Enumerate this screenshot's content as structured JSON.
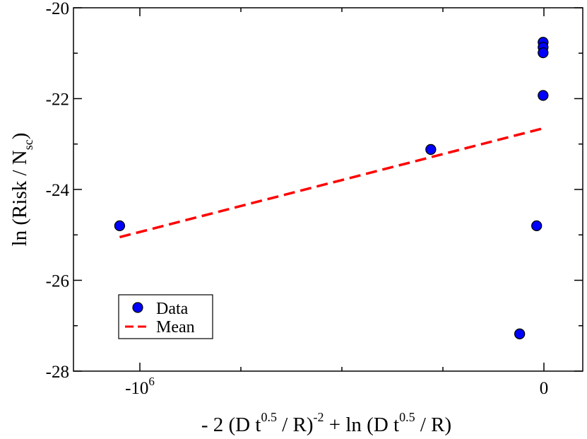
{
  "chart_data": {
    "type": "scatter",
    "title": "",
    "xlabel": {
      "parts": [
        "- 2 (D t",
        "0.5",
        " / R)",
        "-2",
        " + ln (D t",
        "0.5",
        " / R)"
      ]
    },
    "ylabel": {
      "parts": [
        "ln (Risk / N",
        "sc",
        ")"
      ]
    },
    "xlim": [
      -1150000.0,
      100000.0
    ],
    "ylim": [
      -28,
      -20
    ],
    "grid": false,
    "x_ticks": [
      {
        "value": -1000000,
        "base": "-10",
        "exp": "6"
      },
      {
        "value": 0,
        "base": "0",
        "exp": ""
      }
    ],
    "y_ticks": [
      {
        "value": -28,
        "label": "-28"
      },
      {
        "value": -26,
        "label": "-26"
      },
      {
        "value": -24,
        "label": "-24"
      },
      {
        "value": -22,
        "label": "-22"
      },
      {
        "value": -20,
        "label": "-20"
      }
    ],
    "series": [
      {
        "name": "Data",
        "kind": "scatter",
        "color": "#0000ff",
        "points": [
          {
            "x": -1050000,
            "y": -24.8
          },
          {
            "x": -280000,
            "y": -23.12
          },
          {
            "x": -60000,
            "y": -27.18
          },
          {
            "x": -18000,
            "y": -24.8
          },
          {
            "x": -2000,
            "y": -20.76
          },
          {
            "x": -2000,
            "y": -20.87
          },
          {
            "x": -2000,
            "y": -20.99
          },
          {
            "x": -2000,
            "y": -21.93
          }
        ]
      },
      {
        "name": "Mean",
        "kind": "line",
        "style": "dashed",
        "color": "#ff0000",
        "points": [
          {
            "x": -1050000,
            "y": -25.05
          },
          {
            "x": 0,
            "y": -22.65
          }
        ]
      }
    ],
    "legend": {
      "placement": "lower-left",
      "entries": [
        "Data",
        "Mean"
      ]
    }
  }
}
